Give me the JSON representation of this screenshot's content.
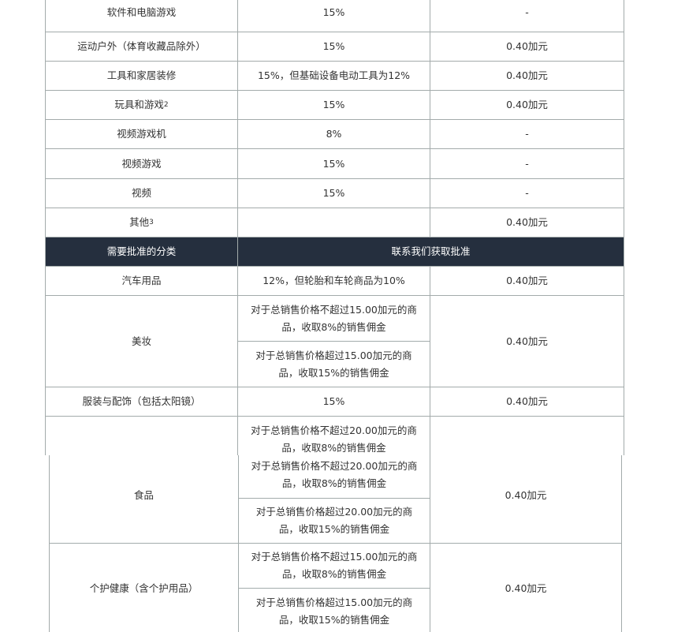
{
  "rows": [
    {
      "category": "软件和电脑游戏",
      "rate": "15%",
      "min_fee": "-"
    },
    {
      "category": "运动户外（体育收藏品除外）",
      "rate": "15%",
      "min_fee": "0.40加元"
    },
    {
      "category": "工具和家居装修",
      "rate": "15%，但基础设备电动工具为12%",
      "min_fee": "0.40加元"
    },
    {
      "category": "玩具和游戏",
      "sup": "2",
      "rate": "15%",
      "min_fee": "0.40加元"
    },
    {
      "category": "视频游戏机",
      "rate": "8%",
      "min_fee": "-"
    },
    {
      "category": "视频游戏",
      "rate": "15%",
      "min_fee": "-"
    },
    {
      "category": "视频",
      "rate": "15%",
      "min_fee": "-"
    },
    {
      "category": "其他",
      "sup": "3",
      "rate": "",
      "min_fee": "0.40加元"
    }
  ],
  "approval_header": {
    "left": "需要批准的分类",
    "right": "联系我们获取批准"
  },
  "approval_rows": [
    {
      "category": "汽车用品",
      "rate": "12%，但轮胎和车轮商品为10%",
      "min_fee": "0.40加元"
    },
    {
      "category": "美妆",
      "rate_a": "对于总销售价格不超过15.00加元的商品，收取8%的销售佣金",
      "rate_b": "对于总销售价格超过15.00加元的商品，收取15%的销售佣金",
      "min_fee": "0.40加元"
    },
    {
      "category": "服装与配饰（包括太阳镜）",
      "rate": "15%",
      "min_fee": "0.40加元"
    },
    {
      "category": "食品",
      "rate_a": "对于总销售价格不超过20.00加元的商品，收取8%的销售佣金",
      "rate_b": "对于总销售价格超过20.00加元的商品，收取15%的销售佣金",
      "min_fee": "0.40加元"
    },
    {
      "category": "个护健康（含个护用品）",
      "rate_a": "对于总销售价格不超过15.00加元的商品，收取8%的销售佣金",
      "rate_b": "对于总销售价格超过15.00加元的商品，收取15%的销售佣金",
      "min_fee": "0.40加元"
    }
  ],
  "colors": {
    "header_bg": "#252f3e",
    "border": "#a3abab",
    "text": "#333333"
  }
}
